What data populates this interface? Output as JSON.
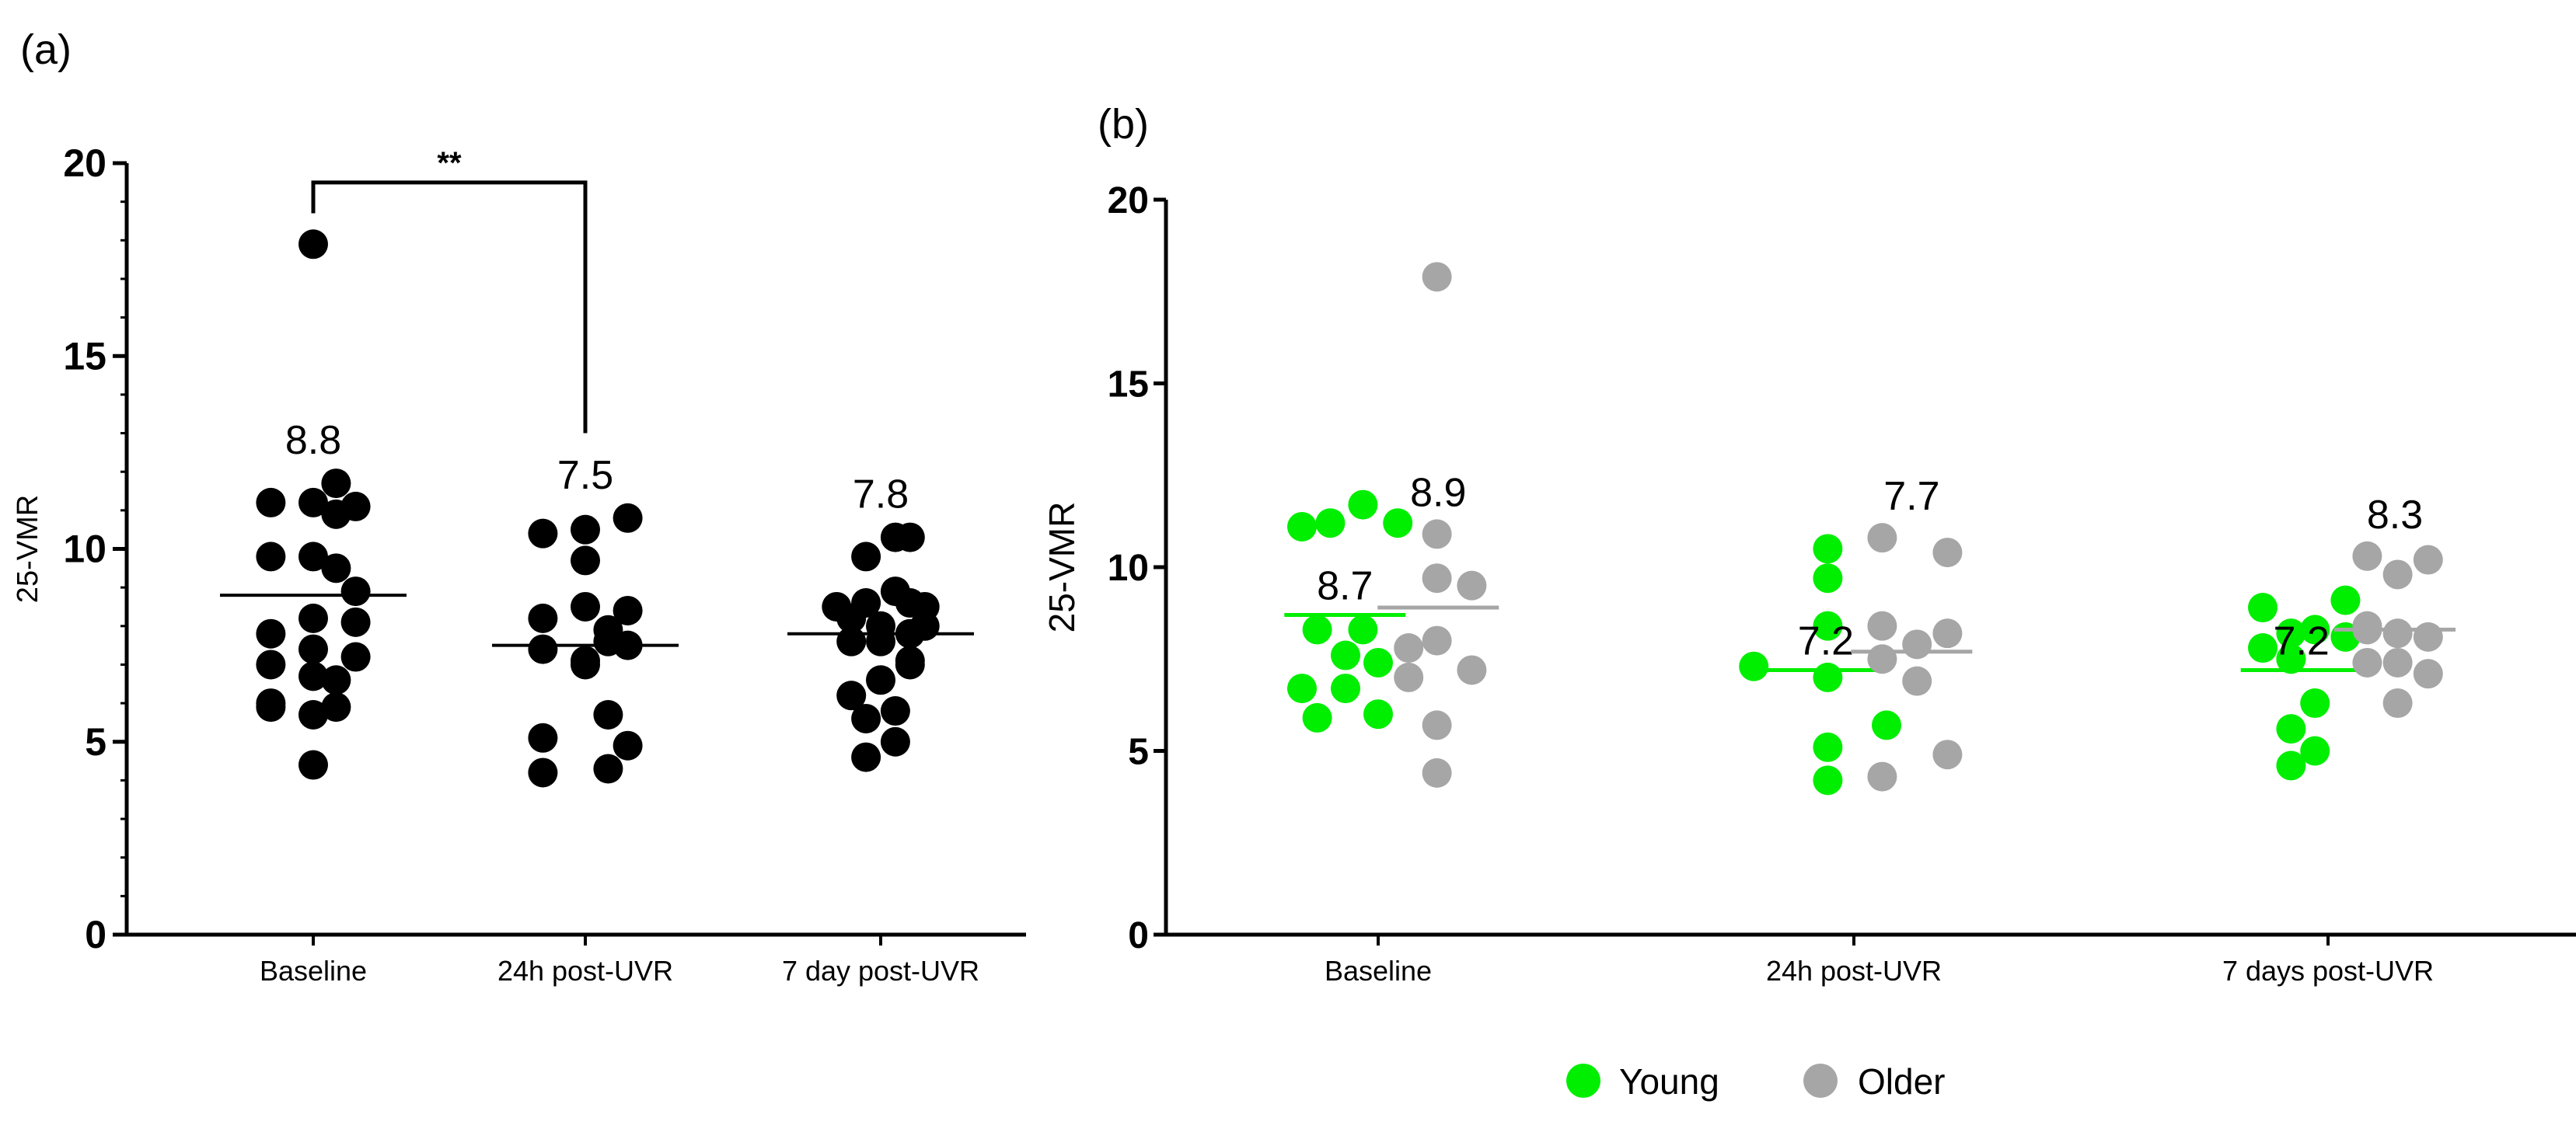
{
  "panels": {
    "a": {
      "label": "(a)"
    },
    "b": {
      "label": "(b)"
    }
  },
  "colors": {
    "ink": "#000000",
    "young": "#00ee00",
    "older": "#a6a6a6"
  },
  "chart_data": [
    {
      "type": "scatter",
      "panel": "a",
      "title": "",
      "xlabel": "",
      "ylabel": "25-VMR",
      "ylim": [
        0,
        20
      ],
      "yticks": [
        "0",
        "5",
        "10",
        "15",
        "20"
      ],
      "categories": [
        "Baseline",
        "24h post-UVR",
        "7 day post-UVR"
      ],
      "series": [
        {
          "name": "Baseline",
          "color": "#000000",
          "mean": 8.8,
          "mean_label": "8.8",
          "x_offsets": [
            -0.26,
            0.0,
            0.14,
            -0.26,
            0.0,
            0.14,
            0.26,
            -0.26,
            0.0,
            0.14,
            0.26,
            0.0,
            0.26,
            -0.26,
            0.0,
            0.26,
            -0.26,
            0.0,
            0.14,
            -0.26,
            0.0,
            0.14,
            0.0
          ],
          "values": [
            11.2,
            11.2,
            11.7,
            9.8,
            9.8,
            10.9,
            11.1,
            7.8,
            8.2,
            9.5,
            8.9,
            7.4,
            8.1,
            7.0,
            6.7,
            7.2,
            6.0,
            5.7,
            6.6,
            5.9,
            4.4,
            5.9,
            17.9
          ]
        },
        {
          "name": "24h post-UVR",
          "color": "#000000",
          "mean": 7.5,
          "mean_label": "7.5",
          "x_offsets": [
            -0.26,
            0.0,
            0.26,
            0.0,
            -0.26,
            0.0,
            0.14,
            0.26,
            -0.26,
            0.0,
            0.14,
            0.26,
            -0.26,
            0.14,
            -0.26,
            0.14,
            0.26,
            0.0
          ],
          "values": [
            10.4,
            10.5,
            10.8,
            9.7,
            8.2,
            8.5,
            7.9,
            8.4,
            7.4,
            7.0,
            7.6,
            7.5,
            5.1,
            5.7,
            4.2,
            4.3,
            4.9,
            7.1
          ]
        },
        {
          "name": "7 day post-UVR",
          "color": "#000000",
          "mean": 7.8,
          "mean_label": "7.8",
          "x_offsets": [
            -0.09,
            0.09,
            0.18,
            -0.27,
            -0.09,
            0.09,
            0.18,
            0.27,
            -0.18,
            0.0,
            0.18,
            -0.18,
            0.0,
            0.18,
            -0.18,
            0.0,
            0.18,
            -0.09,
            0.09,
            -0.09,
            0.09,
            0.27
          ],
          "values": [
            9.8,
            10.3,
            10.3,
            8.5,
            8.6,
            8.9,
            8.6,
            8.5,
            8.2,
            8.0,
            7.8,
            7.6,
            7.6,
            7.1,
            6.2,
            6.6,
            7.0,
            5.6,
            5.8,
            4.6,
            5.0,
            8.0
          ]
        }
      ],
      "annotations": [
        {
          "text": "**",
          "from": "Baseline",
          "to": "24h post-UVR",
          "bracket_y": 19.5,
          "left_tip": 18.7,
          "right_tip": 13.0
        }
      ]
    },
    {
      "type": "scatter",
      "panel": "b",
      "title": "",
      "xlabel": "",
      "ylabel": "25-VMR",
      "ylim": [
        0,
        20
      ],
      "yticks": [
        "0",
        "5",
        "10",
        "15",
        "20"
      ],
      "categories": [
        "Baseline",
        "24h post-UVR",
        "7 days post-UVR"
      ],
      "legend": {
        "placement": "bottom",
        "entries": [
          "Young",
          "Older"
        ]
      },
      "series": [
        {
          "name": "Young",
          "color": "#00ee00",
          "groups": [
            {
              "category": "Baseline",
              "mean": 8.7,
              "mean_label": "8.7",
              "x_offsets": [
                -0.35,
                -0.22,
                -0.07,
                0.09,
                -0.28,
                -0.07,
                -0.15,
                0.0,
                -0.35,
                -0.15,
                -0.28,
                0.0
              ],
              "values": [
                11.1,
                11.2,
                11.7,
                11.2,
                8.3,
                8.3,
                7.6,
                7.4,
                6.7,
                6.7,
                5.9,
                6.0
              ]
            },
            {
              "category": "24h post-UVR",
              "mean": 7.2,
              "mean_label": "7.2",
              "x_offsets": [
                -0.12,
                -0.12,
                -0.12,
                -0.46,
                -0.12,
                0.15,
                -0.12,
                -0.12
              ],
              "values": [
                10.5,
                9.7,
                8.4,
                7.3,
                7.0,
                5.7,
                5.1,
                4.2
              ]
            },
            {
              "category": "7 days post-UVR",
              "mean": 7.2,
              "mean_label": "7.2",
              "x_offsets": [
                -0.3,
                0.08,
                -0.17,
                -0.06,
                0.08,
                -0.3,
                -0.17,
                -0.06,
                -0.17,
                -0.17,
                -0.06,
                -0.17
              ],
              "values": [
                8.9,
                9.1,
                8.2,
                8.3,
                8.1,
                7.8,
                7.5,
                6.3,
                5.6,
                4.6,
                5.0,
                7.5
              ]
            }
          ]
        },
        {
          "name": "Older",
          "color": "#a6a6a6",
          "groups": [
            {
              "category": "Baseline",
              "mean": 8.9,
              "mean_label": "8.9",
              "x_offsets": [
                0.27,
                0.27,
                0.27,
                0.14,
                0.43,
                0.27,
                0.14,
                0.43,
                0.27,
                0.27
              ],
              "values": [
                17.9,
                10.9,
                9.7,
                7.8,
                9.5,
                8.0,
                7.0,
                7.2,
                5.7,
                4.4
              ]
            },
            {
              "category": "24h post-UVR",
              "mean": 7.7,
              "mean_label": "7.7",
              "x_offsets": [
                0.13,
                0.43,
                0.13,
                0.29,
                0.43,
                0.13,
                0.29,
                0.13,
                0.43
              ],
              "values": [
                10.8,
                10.4,
                8.4,
                7.9,
                8.2,
                7.5,
                6.9,
                4.3,
                4.9
              ]
            },
            {
              "category": "7 days post-UVR",
              "mean": 8.3,
              "mean_label": "8.3",
              "x_offsets": [
                0.18,
                0.46,
                0.32,
                0.18,
                0.46,
                0.32,
                0.18,
                0.46,
                0.32,
                0.18,
                0.32
              ],
              "values": [
                10.3,
                10.2,
                9.8,
                8.4,
                8.1,
                8.2,
                7.4,
                7.1,
                6.3,
                8.3,
                7.4
              ]
            }
          ]
        }
      ]
    }
  ]
}
